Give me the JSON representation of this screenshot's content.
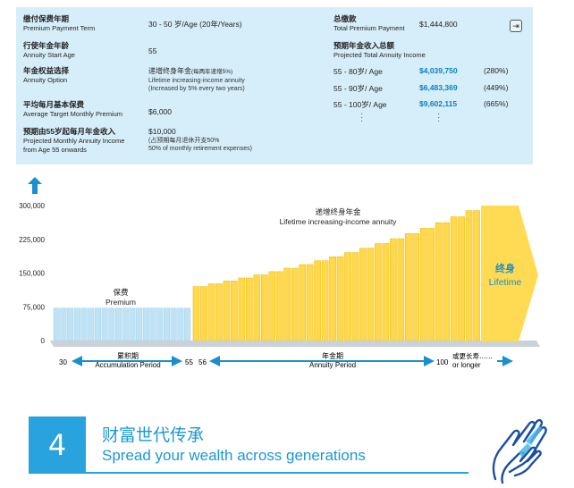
{
  "summary": {
    "term": {
      "zh": "缴付保费年期",
      "en": "Premium Payment Term",
      "value": "30 - 50 岁/Age (20年/Years)"
    },
    "start_age": {
      "zh": "行使年金年龄",
      "en": "Annuity Start Age",
      "value": "55"
    },
    "option": {
      "zh": "年金权益选择",
      "en": "Annuity Option",
      "value_zh": "递增终身年金",
      "value_zh_note": "(每两年递增5%)",
      "value_en": "Lifetime increasing-income annuity",
      "value_en_note": "(Increased by 5% every two years)"
    },
    "avg_premium": {
      "zh": "平均每月基本保费",
      "en": "Average Target Monthly Premium",
      "value": "$6,000"
    },
    "annuity_income": {
      "zh": "预期由55岁起每月年金收入",
      "en": "Projected Monthly Annuity Income",
      "en2": "from Age 55 onwards",
      "value": "$10,000",
      "note_zh": "(占预期每月退休开支50%",
      "note_en": "50% of monthly retirement expenses)"
    },
    "total_premium": {
      "zh": "总缴款",
      "en": "Total Premium Payment",
      "value": "$1,444,800"
    },
    "projected": {
      "zh": "预期年金收入总额",
      "en": "Projected Total Annuity Income",
      "rows": [
        {
          "age": "55 - 80岁/ Age",
          "amount": "$4,039,750",
          "pct": "(280%)"
        },
        {
          "age": "55 - 90岁/ Age",
          "amount": "$6,483,369",
          "pct": "(449%)"
        },
        {
          "age": "55 - 100岁/ Age",
          "amount": "$9,602,115",
          "pct": "(665%)"
        }
      ]
    },
    "share_icon": "share-icon"
  },
  "chart_data": {
    "type": "bar",
    "y_ticks": [
      "300,000",
      "225,000",
      "150,000",
      "75,000",
      "0"
    ],
    "ylim": [
      0,
      300000
    ],
    "premium_label_zh": "保费",
    "premium_label_en": "Premium",
    "annuity_label_zh": "递增终身年金",
    "annuity_label_en": "Lifetime increasing-income annuity",
    "lifetime_zh": "终身",
    "lifetime_en": "Lifetime",
    "premium_values": [
      72000,
      72000,
      72000,
      72000,
      72000,
      72000,
      72000,
      72000,
      72000,
      72000,
      72000,
      72000,
      72000,
      72000,
      72000,
      72000,
      72000,
      72000,
      72000,
      72000
    ],
    "annuity_values": [
      120000,
      120000,
      126000,
      126000,
      132300,
      132300,
      138915,
      138915,
      145861,
      145861,
      153154,
      153154,
      160811,
      160811,
      168852,
      168852,
      177295,
      177295,
      186159,
      186159,
      195467,
      195467,
      205241,
      205241,
      215503,
      215503,
      226278,
      226278,
      237592,
      237592,
      249471,
      249471,
      261945,
      261945,
      275042,
      275042,
      288794,
      288794
    ],
    "timeline": {
      "start": "30",
      "accum_zh": "累积期",
      "accum_en": "Accumulation Period",
      "accum_end": "55",
      "annuity_start": "56",
      "annuity_zh": "年金期",
      "annuity_en": "Annuity Period",
      "end": "100",
      "longer_zh": "或更长寿……",
      "longer_en": "or longer"
    },
    "colors": {
      "premium": "#bfe3f5",
      "annuity": "#ffd94a",
      "annuity_dark": "#f2bb1a",
      "axis": "#1a8fd0",
      "floor": "#c9d2d8",
      "lifetime_text": "#1a8fd0"
    }
  },
  "section": {
    "number": "4",
    "title_zh": "财富世代传承",
    "title_en": "Spread your wealth across generations",
    "icon": "hands-icon"
  }
}
